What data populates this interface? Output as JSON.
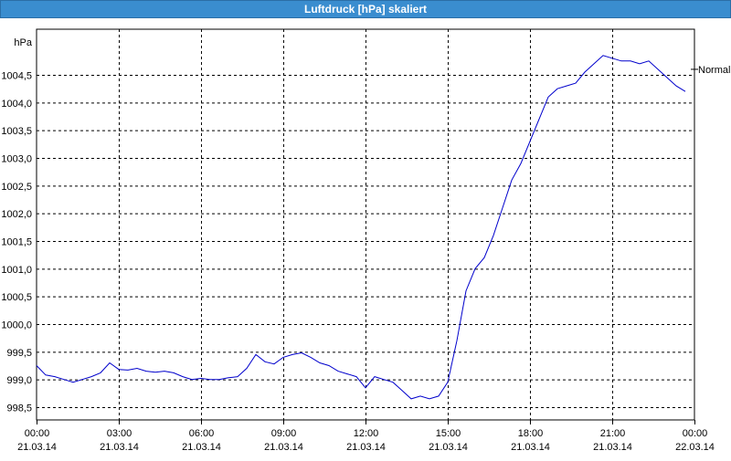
{
  "window": {
    "title": "Luftdruck [hPa] skaliert"
  },
  "chart_data": {
    "type": "line",
    "ylabel": "hPa",
    "ylim": [
      998.5,
      1005.0
    ],
    "y_ticks": [
      998.5,
      999.0,
      999.5,
      1000.0,
      1000.5,
      1001.0,
      1001.5,
      1002.0,
      1002.5,
      1003.0,
      1003.5,
      1004.0,
      1004.5
    ],
    "y_tick_labels": [
      "998,5",
      "999,0",
      "999,5",
      "1000,0",
      "1000,5",
      "1001,0",
      "1001,5",
      "1002,0",
      "1002,5",
      "1003,0",
      "1003,5",
      "1004,0",
      "1004,5"
    ],
    "xlim": [
      "2014-03-21 00:00",
      "2014-03-22 00:00"
    ],
    "x_ticks": [
      {
        "time": "00:00",
        "date": "21.03.14"
      },
      {
        "time": "03:00",
        "date": "21.03.14"
      },
      {
        "time": "06:00",
        "date": "21.03.14"
      },
      {
        "time": "09:00",
        "date": "21.03.14"
      },
      {
        "time": "12:00",
        "date": "21.03.14"
      },
      {
        "time": "15:00",
        "date": "21.03.14"
      },
      {
        "time": "18:00",
        "date": "21.03.14"
      },
      {
        "time": "21:00",
        "date": "21.03.14"
      },
      {
        "time": "00:00",
        "date": "22.03.14"
      }
    ],
    "grid": true,
    "reference_line": {
      "label": "Normal",
      "value": 1004.6
    },
    "series": [
      {
        "color": "#0000cc",
        "points": [
          [
            "2014-03-21 00:00",
            999.25
          ],
          [
            "2014-03-21 00:20",
            999.08
          ],
          [
            "2014-03-21 00:40",
            999.05
          ],
          [
            "2014-03-21 01:00",
            999.0
          ],
          [
            "2014-03-21 01:20",
            998.95
          ],
          [
            "2014-03-21 01:40",
            999.0
          ],
          [
            "2014-03-21 02:00",
            999.05
          ],
          [
            "2014-03-21 02:20",
            999.12
          ],
          [
            "2014-03-21 02:40",
            999.3
          ],
          [
            "2014-03-21 03:00",
            999.18
          ],
          [
            "2014-03-21 03:20",
            999.17
          ],
          [
            "2014-03-21 03:40",
            999.2
          ],
          [
            "2014-03-21 04:00",
            999.15
          ],
          [
            "2014-03-21 04:20",
            999.13
          ],
          [
            "2014-03-21 04:40",
            999.15
          ],
          [
            "2014-03-21 05:00",
            999.12
          ],
          [
            "2014-03-21 05:20",
            999.05
          ],
          [
            "2014-03-21 05:40",
            999.0
          ],
          [
            "2014-03-21 06:00",
            999.02
          ],
          [
            "2014-03-21 06:20",
            999.0
          ],
          [
            "2014-03-21 06:40",
            999.0
          ],
          [
            "2014-03-21 07:00",
            999.03
          ],
          [
            "2014-03-21 07:20",
            999.05
          ],
          [
            "2014-03-21 07:40",
            999.2
          ],
          [
            "2014-03-21 08:00",
            999.45
          ],
          [
            "2014-03-21 08:20",
            999.32
          ],
          [
            "2014-03-21 08:40",
            999.28
          ],
          [
            "2014-03-21 09:00",
            999.4
          ],
          [
            "2014-03-21 09:20",
            999.45
          ],
          [
            "2014-03-21 09:40",
            999.48
          ],
          [
            "2014-03-21 10:00",
            999.4
          ],
          [
            "2014-03-21 10:20",
            999.3
          ],
          [
            "2014-03-21 10:40",
            999.25
          ],
          [
            "2014-03-21 11:00",
            999.15
          ],
          [
            "2014-03-21 11:20",
            999.1
          ],
          [
            "2014-03-21 11:40",
            999.05
          ],
          [
            "2014-03-21 12:00",
            998.85
          ],
          [
            "2014-03-21 12:20",
            999.05
          ],
          [
            "2014-03-21 12:40",
            999.0
          ],
          [
            "2014-03-21 13:00",
            998.95
          ],
          [
            "2014-03-21 13:20",
            998.8
          ],
          [
            "2014-03-21 13:40",
            998.65
          ],
          [
            "2014-03-21 14:00",
            998.7
          ],
          [
            "2014-03-21 14:20",
            998.65
          ],
          [
            "2014-03-21 14:40",
            998.7
          ],
          [
            "2014-03-21 15:00",
            998.95
          ],
          [
            "2014-03-21 15:20",
            999.7
          ],
          [
            "2014-03-21 15:40",
            1000.6
          ],
          [
            "2014-03-21 16:00",
            1001.0
          ],
          [
            "2014-03-21 16:20",
            1001.2
          ],
          [
            "2014-03-21 16:40",
            1001.6
          ],
          [
            "2014-03-21 17:00",
            1002.1
          ],
          [
            "2014-03-21 17:20",
            1002.6
          ],
          [
            "2014-03-21 17:40",
            1002.9
          ],
          [
            "2014-03-21 18:00",
            1003.3
          ],
          [
            "2014-03-21 18:20",
            1003.7
          ],
          [
            "2014-03-21 18:40",
            1004.1
          ],
          [
            "2014-03-21 19:00",
            1004.25
          ],
          [
            "2014-03-21 19:20",
            1004.3
          ],
          [
            "2014-03-21 19:40",
            1004.35
          ],
          [
            "2014-03-21 20:00",
            1004.55
          ],
          [
            "2014-03-21 20:20",
            1004.7
          ],
          [
            "2014-03-21 20:40",
            1004.85
          ],
          [
            "2014-03-21 21:00",
            1004.8
          ],
          [
            "2014-03-21 21:20",
            1004.75
          ],
          [
            "2014-03-21 21:40",
            1004.75
          ],
          [
            "2014-03-21 22:00",
            1004.7
          ],
          [
            "2014-03-21 22:20",
            1004.75
          ],
          [
            "2014-03-21 22:40",
            1004.6
          ],
          [
            "2014-03-21 23:00",
            1004.45
          ],
          [
            "2014-03-21 23:20",
            1004.3
          ],
          [
            "2014-03-21 23:40",
            1004.2
          ]
        ]
      }
    ]
  }
}
